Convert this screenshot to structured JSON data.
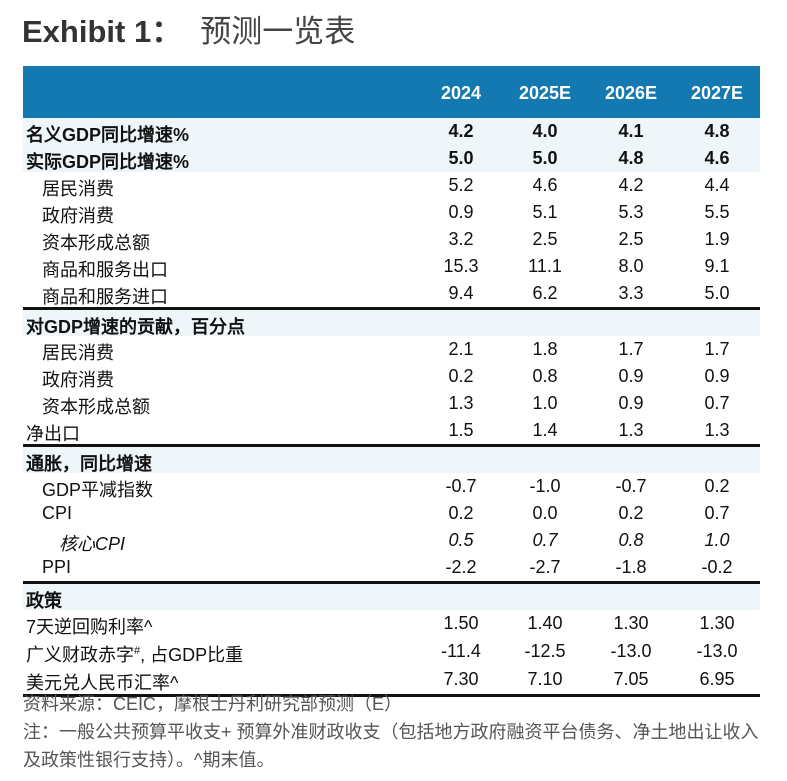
{
  "title": {
    "exhibit": "Exhibit 1：",
    "name": "预测一览表"
  },
  "columns": [
    "2024",
    "2025E",
    "2026E",
    "2027E"
  ],
  "rows": [
    {
      "label": "名义GDP同比增速%",
      "values": [
        "4.2",
        "4.0",
        "4.1",
        "4.8"
      ],
      "style": "bold light"
    },
    {
      "label": "实际GDP同比增速%",
      "values": [
        "5.0",
        "5.0",
        "4.8",
        "4.6"
      ],
      "style": "bold light"
    },
    {
      "label": "居民消费",
      "values": [
        "5.2",
        "4.6",
        "4.2",
        "4.4"
      ],
      "style": "ind"
    },
    {
      "label": "政府消费",
      "values": [
        "0.9",
        "5.1",
        "5.3",
        "5.5"
      ],
      "style": "ind"
    },
    {
      "label": "资本形成总额",
      "values": [
        "3.2",
        "2.5",
        "2.5",
        "1.9"
      ],
      "style": "ind"
    },
    {
      "label": "商品和服务出口",
      "values": [
        "15.3",
        "11.1",
        "8.0",
        "9.1"
      ],
      "style": "ind"
    },
    {
      "label": "商品和服务进口",
      "values": [
        "9.4",
        "6.2",
        "3.3",
        "5.0"
      ],
      "style": "ind"
    },
    {
      "label": "对GDP增速的贡献，百分点",
      "values": [],
      "style": "bold light sec"
    },
    {
      "label": "居民消费",
      "values": [
        "2.1",
        "1.8",
        "1.7",
        "1.7"
      ],
      "style": "ind"
    },
    {
      "label": "政府消费",
      "values": [
        "0.2",
        "0.8",
        "0.9",
        "0.9"
      ],
      "style": "ind"
    },
    {
      "label": "资本形成总额",
      "values": [
        "1.3",
        "1.0",
        "0.9",
        "0.7"
      ],
      "style": "ind"
    },
    {
      "label": "净出口",
      "values": [
        "1.5",
        "1.4",
        "1.3",
        "1.3"
      ],
      "style": ""
    },
    {
      "label": "通胀，同比增速",
      "values": [],
      "style": "bold light sec"
    },
    {
      "label": "GDP平减指数",
      "values": [
        "-0.7",
        "-1.0",
        "-0.7",
        "0.2"
      ],
      "style": "ind"
    },
    {
      "label": "CPI",
      "values": [
        "0.2",
        "0.0",
        "0.2",
        "0.7"
      ],
      "style": "ind"
    },
    {
      "label": "核心CPI",
      "values": [
        "0.5",
        "0.7",
        "0.8",
        "1.0"
      ],
      "style": "ind2 ital"
    },
    {
      "label": "PPI",
      "values": [
        "-2.2",
        "-2.7",
        "-1.8",
        "-0.2"
      ],
      "style": "ind"
    },
    {
      "label": "政策",
      "values": [],
      "style": "bold light sec"
    },
    {
      "label": "7天逆回购利率^",
      "values": [
        "1.50",
        "1.40",
        "1.30",
        "1.30"
      ],
      "style": "tall"
    },
    {
      "label": "广义财政赤字",
      "sup": "#",
      "suffix": ", 占GDP比重",
      "values": [
        "-11.4",
        "-12.5",
        "-13.0",
        "-13.0"
      ],
      "style": "tall"
    },
    {
      "label": "美元兑人民币汇率^",
      "values": [
        "7.30",
        "7.10",
        "7.05",
        "6.95"
      ],
      "style": "tall bottom"
    }
  ],
  "footer": {
    "source": "资料来源：CEIC，摩根士丹利研究部预测（E）",
    "note": "注：一般公共预算平收支+ 预算外准财政收支（包括地方政府融资平台债务、净土地出让收入及政策性银行支持）。^期末值。"
  }
}
